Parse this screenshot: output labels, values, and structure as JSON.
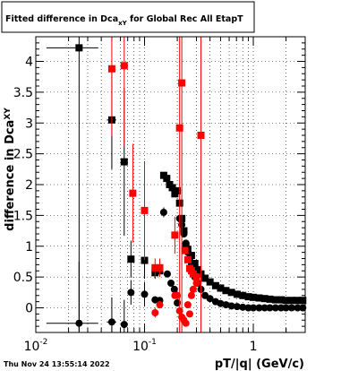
{
  "header": {
    "title_prefix": "Fitted difference in Dca",
    "title_subscript": "xY",
    "title_suffix": " for Global Rec All EtapT"
  },
  "footer": {
    "timestamp": "Thu Nov 24 13:55:14 2022"
  },
  "colors": {
    "black_series": "#000000",
    "red_series": "#ff0000",
    "grid": "#000000",
    "background": "#ffffff"
  },
  "chart_data": {
    "type": "scatter",
    "xlabel": "pT/|q| (GeV/c)",
    "ylabel_main": "difference in Dca",
    "ylabel_subscript": "XY",
    "xscale": "log",
    "xlim": [
      0.01,
      3.0
    ],
    "ylim": [
      -0.4,
      4.4
    ],
    "grid": true,
    "x_ticks": [
      {
        "value": 0.01,
        "label": "10",
        "exponent": "-2"
      },
      {
        "value": 0.1,
        "label": "10",
        "exponent": "-1"
      },
      {
        "value": 1,
        "label": "1",
        "exponent": ""
      }
    ],
    "y_ticks": [
      {
        "value": 0,
        "label": "0"
      },
      {
        "value": 0.5,
        "label": "0.5"
      },
      {
        "value": 1,
        "label": "1"
      },
      {
        "value": 1.5,
        "label": "1.5"
      },
      {
        "value": 2,
        "label": "2"
      },
      {
        "value": 2.5,
        "label": "2.5"
      },
      {
        "value": 3,
        "label": "3"
      },
      {
        "value": 3.5,
        "label": "3.5"
      },
      {
        "value": 4,
        "label": "4"
      }
    ],
    "series": [
      {
        "marker": "square",
        "color": "#000000",
        "points": [
          {
            "x": 0.025,
            "y": 4.22,
            "xerr": [
              0.0125,
              0.0125
            ],
            "yerr": 4.6
          },
          {
            "x": 0.05,
            "y": 3.05,
            "xerr": [
              0.005,
              0.005
            ],
            "yerr": 0.8
          },
          {
            "x": 0.065,
            "y": 2.37,
            "xerr": [
              0.003,
              0.003
            ],
            "yerr": 1.2
          },
          {
            "x": 0.075,
            "y": 0.79,
            "xerr": [
              0.003,
              0.003
            ],
            "yerr": 0.3
          },
          {
            "x": 0.1,
            "y": 0.77,
            "xerr": [
              0.003,
              0.003
            ],
            "yerr": 0.3
          },
          {
            "x": 0.125,
            "y": 0.57,
            "yerr": 0.1
          },
          {
            "x": 0.138,
            "y": 0.6,
            "yerr": 0.08
          },
          {
            "x": 0.15,
            "y": 2.15
          },
          {
            "x": 0.16,
            "y": 2.1
          },
          {
            "x": 0.17,
            "y": 2.0
          },
          {
            "x": 0.18,
            "y": 1.95
          },
          {
            "x": 0.19,
            "y": 1.85
          },
          {
            "x": 0.2,
            "y": 1.9
          },
          {
            "x": 0.21,
            "y": 1.7
          },
          {
            "x": 0.22,
            "y": 1.45
          },
          {
            "x": 0.23,
            "y": 1.25
          },
          {
            "x": 0.24,
            "y": 1.0
          },
          {
            "x": 0.25,
            "y": 0.95
          },
          {
            "x": 0.27,
            "y": 0.85
          },
          {
            "x": 0.29,
            "y": 0.72
          },
          {
            "x": 0.31,
            "y": 0.62
          },
          {
            "x": 0.33,
            "y": 0.55
          },
          {
            "x": 0.36,
            "y": 0.48
          },
          {
            "x": 0.4,
            "y": 0.42
          },
          {
            "x": 0.45,
            "y": 0.36
          },
          {
            "x": 0.5,
            "y": 0.32
          },
          {
            "x": 0.56,
            "y": 0.28
          },
          {
            "x": 0.63,
            "y": 0.25
          },
          {
            "x": 0.71,
            "y": 0.22
          },
          {
            "x": 0.8,
            "y": 0.2
          },
          {
            "x": 0.9,
            "y": 0.18
          },
          {
            "x": 1.0,
            "y": 0.17
          },
          {
            "x": 1.13,
            "y": 0.16
          },
          {
            "x": 1.27,
            "y": 0.15
          },
          {
            "x": 1.42,
            "y": 0.14
          },
          {
            "x": 1.6,
            "y": 0.13
          },
          {
            "x": 1.8,
            "y": 0.13
          },
          {
            "x": 2.0,
            "y": 0.12
          },
          {
            "x": 2.25,
            "y": 0.12
          },
          {
            "x": 2.55,
            "y": 0.12
          },
          {
            "x": 2.85,
            "y": 0.12
          }
        ]
      },
      {
        "marker": "circle",
        "color": "#000000",
        "points": [
          {
            "x": 0.025,
            "y": -0.25,
            "xerr": [
              0.0125,
              0.0125
            ],
            "yerr": 1.0
          },
          {
            "x": 0.05,
            "y": -0.23,
            "xerr": [
              0.005,
              0.005
            ],
            "yerr": 0.4
          },
          {
            "x": 0.065,
            "y": -0.27,
            "xerr": [
              0.003,
              0.003
            ],
            "yerr": 0.4
          },
          {
            "x": 0.075,
            "y": 0.25,
            "xerr": [
              0.003,
              0.003
            ],
            "yerr": 0.2
          },
          {
            "x": 0.1,
            "y": 0.22,
            "xerr": [
              0.003,
              0.003
            ],
            "yerr": 0.2
          },
          {
            "x": 0.125,
            "y": 0.13,
            "yerr": 0.06
          },
          {
            "x": 0.138,
            "y": 0.12
          },
          {
            "x": 0.15,
            "y": 1.55,
            "yerr": 0.08
          },
          {
            "x": 0.162,
            "y": 0.55
          },
          {
            "x": 0.175,
            "y": 0.4
          },
          {
            "x": 0.188,
            "y": 0.3
          },
          {
            "x": 0.2,
            "y": 0.08
          },
          {
            "x": 0.21,
            "y": 1.45
          },
          {
            "x": 0.22,
            "y": 1.35
          },
          {
            "x": 0.23,
            "y": 1.2
          },
          {
            "x": 0.24,
            "y": 1.05
          },
          {
            "x": 0.25,
            "y": 0.9
          },
          {
            "x": 0.26,
            "y": 0.8
          },
          {
            "x": 0.27,
            "y": 0.7
          },
          {
            "x": 0.28,
            "y": 0.6
          },
          {
            "x": 0.29,
            "y": 0.5
          },
          {
            "x": 0.31,
            "y": 0.4
          },
          {
            "x": 0.33,
            "y": 0.3
          },
          {
            "x": 0.36,
            "y": 0.2
          },
          {
            "x": 0.4,
            "y": 0.15
          },
          {
            "x": 0.45,
            "y": 0.1
          },
          {
            "x": 0.5,
            "y": 0.07
          },
          {
            "x": 0.56,
            "y": 0.05
          },
          {
            "x": 0.63,
            "y": 0.03
          },
          {
            "x": 0.71,
            "y": 0.02
          },
          {
            "x": 0.8,
            "y": 0.01
          },
          {
            "x": 0.9,
            "y": 0.0
          },
          {
            "x": 1.0,
            "y": 0.0
          },
          {
            "x": 1.13,
            "y": 0.0
          },
          {
            "x": 1.27,
            "y": 0.0
          },
          {
            "x": 1.42,
            "y": 0.0
          },
          {
            "x": 1.6,
            "y": 0.0
          },
          {
            "x": 1.8,
            "y": 0.0
          },
          {
            "x": 2.0,
            "y": 0.0
          },
          {
            "x": 2.25,
            "y": 0.0
          },
          {
            "x": 2.55,
            "y": 0.0
          },
          {
            "x": 2.85,
            "y": 0.0
          }
        ]
      },
      {
        "marker": "square",
        "color": "#ff0000",
        "points": [
          {
            "x": 0.05,
            "y": 3.88,
            "yerr": 1.1
          },
          {
            "x": 0.065,
            "y": 3.93,
            "yerr": 1.3
          },
          {
            "x": 0.078,
            "y": 1.86,
            "yerr": 0.8
          },
          {
            "x": 0.1,
            "y": 1.58,
            "yerr": 0.8
          },
          {
            "x": 0.125,
            "y": 0.65,
            "yerr": 0.15
          },
          {
            "x": 0.138,
            "y": 0.65,
            "yerr": 0.15
          },
          {
            "x": 0.19,
            "y": 1.18,
            "yerr": 0.3
          },
          {
            "x": 0.21,
            "y": 2.92,
            "yerr": 4.5
          },
          {
            "x": 0.22,
            "y": 3.65,
            "yerr": 4.5
          },
          {
            "x": 0.235,
            "y": 0.93
          },
          {
            "x": 0.25,
            "y": 0.78
          },
          {
            "x": 0.26,
            "y": 0.64
          },
          {
            "x": 0.27,
            "y": 0.6
          },
          {
            "x": 0.28,
            "y": 0.55
          },
          {
            "x": 0.3,
            "y": 0.5
          },
          {
            "x": 0.33,
            "y": 2.8,
            "yerr": 4.5
          }
        ]
      },
      {
        "marker": "circle",
        "color": "#ff0000",
        "points": [
          {
            "x": 0.125,
            "y": -0.08,
            "yerr": 0.08
          },
          {
            "x": 0.138,
            "y": 0.05,
            "yerr": 0.06
          },
          {
            "x": 0.19,
            "y": 0.2
          },
          {
            "x": 0.2,
            "y": 0.2
          },
          {
            "x": 0.21,
            "y": -0.05
          },
          {
            "x": 0.22,
            "y": -0.15
          },
          {
            "x": 0.23,
            "y": -0.2
          },
          {
            "x": 0.24,
            "y": -0.25
          },
          {
            "x": 0.25,
            "y": 0.05
          },
          {
            "x": 0.26,
            "y": -0.1
          },
          {
            "x": 0.27,
            "y": 0.2
          },
          {
            "x": 0.28,
            "y": 0.3
          },
          {
            "x": 0.3,
            "y": 0.4
          }
        ]
      }
    ]
  }
}
